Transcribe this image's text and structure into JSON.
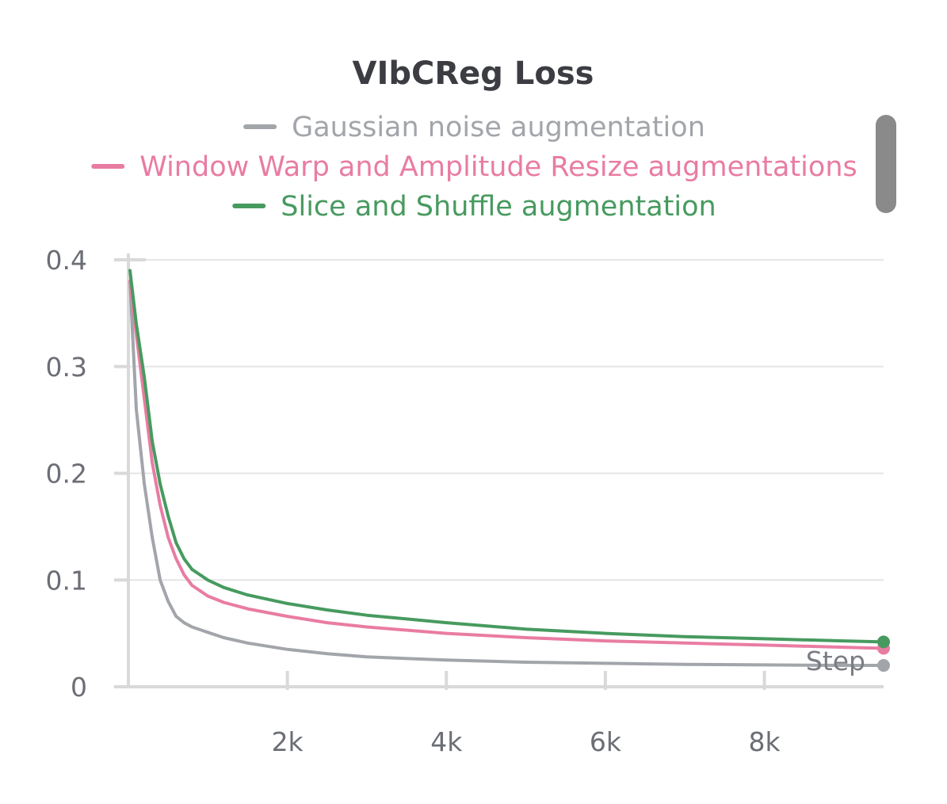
{
  "chart_data": {
    "type": "line",
    "title": "VIbCReg Loss",
    "xlabel": "Step",
    "ylabel": "",
    "xlim": [
      0,
      9500
    ],
    "ylim": [
      0,
      0.4
    ],
    "x_ticks": [
      2000,
      4000,
      6000,
      8000
    ],
    "x_tick_labels": [
      "2k",
      "4k",
      "6k",
      "8k"
    ],
    "y_ticks": [
      0,
      0.1,
      0.2,
      0.3,
      0.4
    ],
    "y_tick_labels": [
      "0",
      "0.1",
      "0.2",
      "0.3",
      "0.4"
    ],
    "grid": true,
    "legend_position": "top-center",
    "series": [
      {
        "name": "Gaussian noise augmentation",
        "color": "#a2a5aa",
        "x": [
          20,
          100,
          200,
          300,
          400,
          500,
          600,
          700,
          800,
          1000,
          1200,
          1500,
          2000,
          2500,
          3000,
          4000,
          5000,
          6000,
          7000,
          8000,
          9000,
          9500
        ],
        "y": [
          0.38,
          0.26,
          0.19,
          0.14,
          0.1,
          0.08,
          0.066,
          0.06,
          0.056,
          0.051,
          0.046,
          0.041,
          0.035,
          0.031,
          0.028,
          0.025,
          0.023,
          0.022,
          0.021,
          0.0205,
          0.02,
          0.02
        ]
      },
      {
        "name": "Window Warp and Amplitude Resize augmentations",
        "color": "#e97ca3",
        "x": [
          20,
          100,
          200,
          300,
          400,
          500,
          600,
          700,
          800,
          1000,
          1200,
          1500,
          2000,
          2500,
          3000,
          4000,
          5000,
          6000,
          7000,
          8000,
          9000,
          9500
        ],
        "y": [
          0.38,
          0.33,
          0.27,
          0.21,
          0.17,
          0.14,
          0.12,
          0.105,
          0.095,
          0.085,
          0.079,
          0.073,
          0.066,
          0.06,
          0.056,
          0.05,
          0.046,
          0.043,
          0.041,
          0.039,
          0.037,
          0.036
        ]
      },
      {
        "name": "Slice and Shuffle augmentation",
        "color": "#479a5f",
        "x": [
          20,
          100,
          200,
          300,
          400,
          500,
          600,
          700,
          800,
          1000,
          1200,
          1500,
          2000,
          2500,
          3000,
          4000,
          5000,
          6000,
          7000,
          8000,
          9000,
          9500
        ],
        "y": [
          0.39,
          0.34,
          0.29,
          0.23,
          0.19,
          0.16,
          0.135,
          0.12,
          0.11,
          0.1,
          0.093,
          0.086,
          0.078,
          0.072,
          0.067,
          0.06,
          0.054,
          0.05,
          0.047,
          0.045,
          0.043,
          0.042
        ]
      }
    ]
  }
}
